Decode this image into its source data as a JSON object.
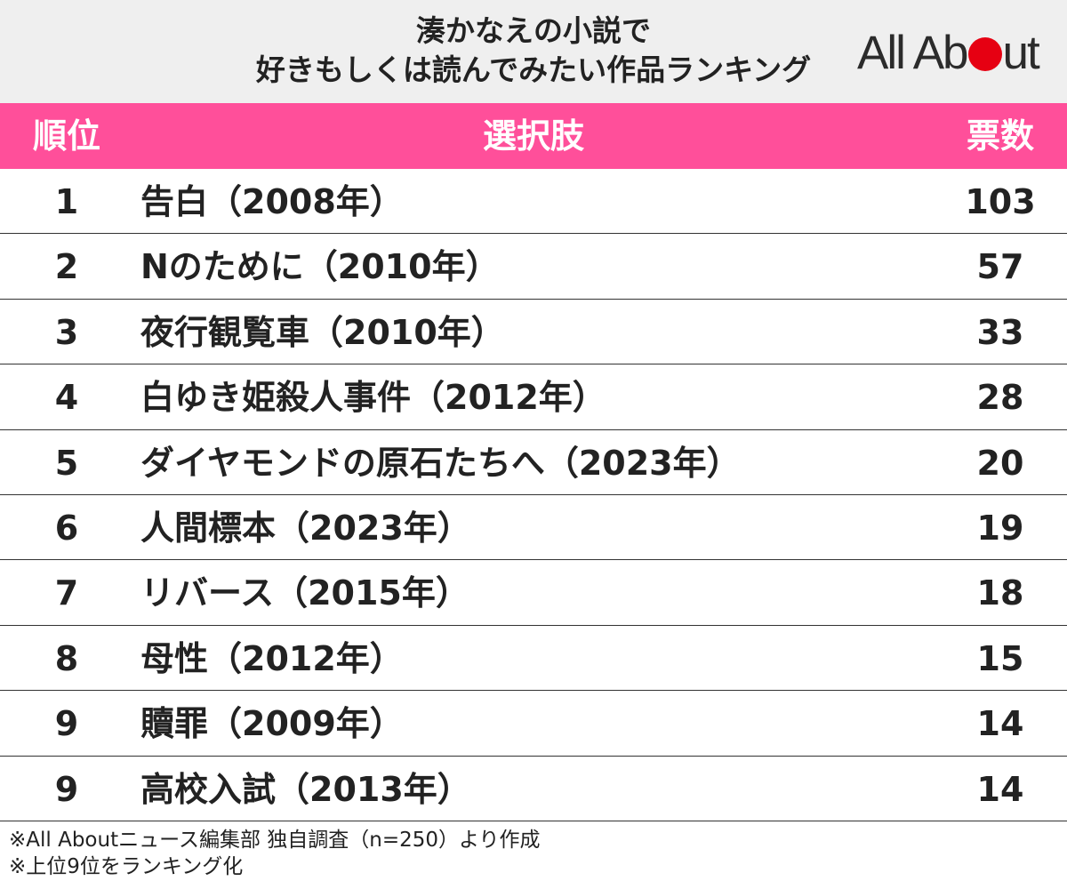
{
  "header": {
    "title_line1": "湊かなえの小説で",
    "title_line2": "好きもしくは読んでみたい作品ランキング",
    "logo_pre": "All Ab",
    "logo_post": "ut",
    "logo_dot_color": "#e60012"
  },
  "table": {
    "header_color": "#ff4f9a",
    "columns": {
      "rank": "順位",
      "choice": "選択肢",
      "votes": "票数"
    },
    "rows": [
      {
        "rank": "1",
        "title": "告白（2008年）",
        "votes": "103"
      },
      {
        "rank": "2",
        "title": "Nのために（2010年）",
        "votes": "57"
      },
      {
        "rank": "3",
        "title": "夜行観覧車（2010年）",
        "votes": "33"
      },
      {
        "rank": "4",
        "title": "白ゆき姫殺人事件（2012年）",
        "votes": "28"
      },
      {
        "rank": "5",
        "title": "ダイヤモンドの原石たちへ（2023年）",
        "votes": "20"
      },
      {
        "rank": "6",
        "title": "人間標本（2023年）",
        "votes": "19"
      },
      {
        "rank": "7",
        "title": "リバース（2015年）",
        "votes": "18"
      },
      {
        "rank": "8",
        "title": "母性（2012年）",
        "votes": "15"
      },
      {
        "rank": "9",
        "title": "贖罪（2009年）",
        "votes": "14"
      },
      {
        "rank": "9",
        "title": "高校入試（2013年）",
        "votes": "14"
      }
    ]
  },
  "notes": {
    "line1": "※All Aboutニュース編集部 独自調査（n=250）より作成",
    "line2": "※上位9位をランキング化"
  }
}
